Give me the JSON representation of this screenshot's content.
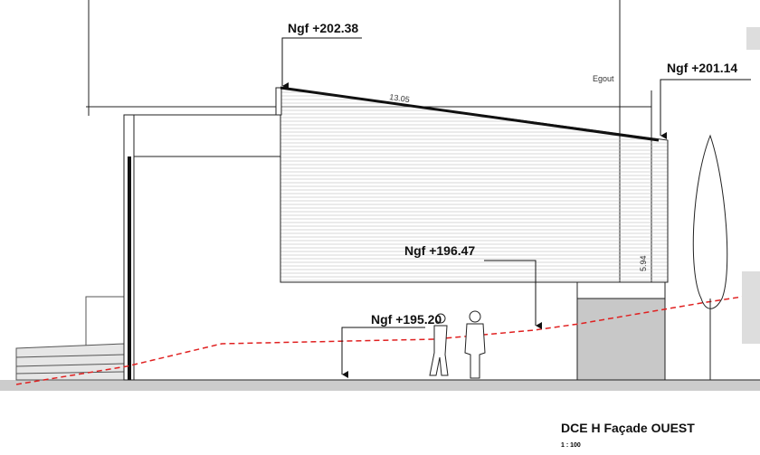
{
  "labels": {
    "top_left_level": "Ngf +202.38",
    "top_right_level": "Ngf +201.14",
    "gutter": "Egout",
    "length": "13.05",
    "height": "5.94",
    "floor_level": "Ngf +196.47",
    "ground_level": "Ngf +195.20"
  },
  "caption": {
    "title": "DCE H Façade OUEST",
    "scale": "1 : 100"
  }
}
